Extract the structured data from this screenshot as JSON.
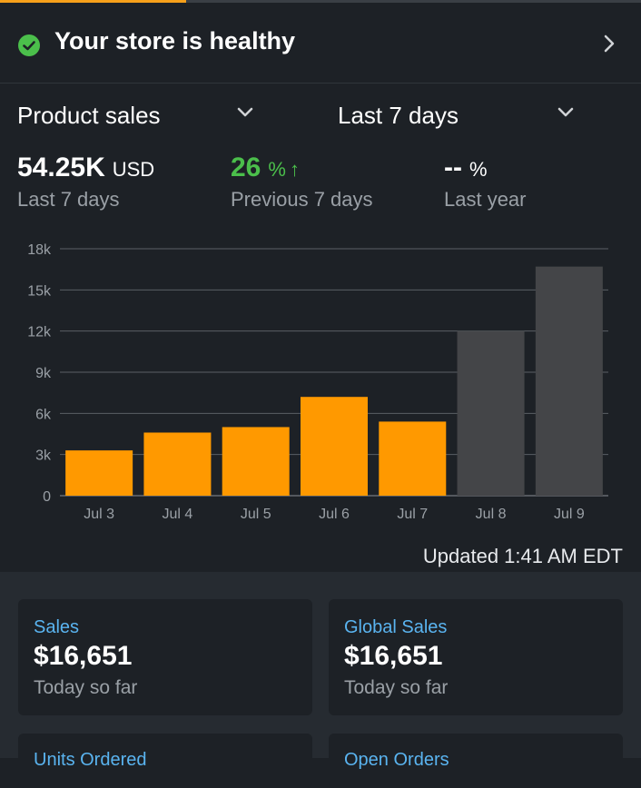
{
  "health": {
    "title": "Your store is healthy"
  },
  "selectors": {
    "metric": "Product sales",
    "period": "Last 7 days"
  },
  "metrics": [
    {
      "value": "54.25K",
      "unit": "USD",
      "sub": "Last 7 days"
    },
    {
      "value": "26",
      "unit": "%",
      "arrow": "↑",
      "sub": "Previous 7 days"
    },
    {
      "value": "--",
      "unit": "%",
      "sub": "Last year"
    }
  ],
  "chart_data": {
    "type": "bar",
    "categories": [
      "Jul 3",
      "Jul 4",
      "Jul 5",
      "Jul 6",
      "Jul 7",
      "Jul 8",
      "Jul 9"
    ],
    "values": [
      3300,
      4600,
      5000,
      7200,
      5400,
      12000,
      16700
    ],
    "bar_colors": [
      "#ff9900",
      "#ff9900",
      "#ff9900",
      "#ff9900",
      "#ff9900",
      "#444548",
      "#444548"
    ],
    "ylim": [
      0,
      18000
    ],
    "yticks": [
      "0",
      "3k",
      "6k",
      "9k",
      "12k",
      "15k",
      "18k"
    ],
    "grid": true
  },
  "updated": "Updated 1:41 AM EDT",
  "cards": [
    {
      "label": "Sales",
      "value": "$16,651",
      "sub": "Today so far"
    },
    {
      "label": "Global Sales",
      "value": "$16,651",
      "sub": "Today so far"
    }
  ],
  "cards_row2": [
    {
      "label": "Units Ordered"
    },
    {
      "label": "Open Orders"
    }
  ],
  "colors": {
    "accent": "#ff9900",
    "positive": "#4bbf4b",
    "link": "#5ab4f0",
    "background": "#1d2126"
  }
}
